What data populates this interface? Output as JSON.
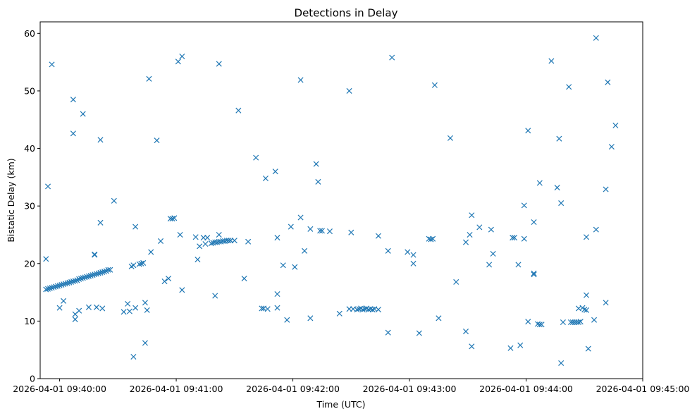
{
  "chart_data": {
    "type": "scatter",
    "title": "Detections in Delay",
    "xlabel": "Time (UTC)",
    "ylabel": "Bistatic Delay (km)",
    "marker": "x",
    "color": "#1f77b4",
    "grid": false,
    "xlim": [
      "2026-04-01 09:39:50",
      "2026-04-01 09:45:00"
    ],
    "ylim": [
      0,
      62
    ],
    "x_ticks": [
      "2026-04-01 09:40:00",
      "2026-04-01 09:41:00",
      "2026-04-01 09:42:00",
      "2026-04-01 09:43:00",
      "2026-04-01 09:44:00",
      "2026-04-01 09:45:00"
    ],
    "y_ticks": [
      0,
      10,
      20,
      30,
      40,
      50,
      60
    ],
    "points": [
      [
        "09:39:53",
        15.5
      ],
      [
        "09:39:54",
        15.6
      ],
      [
        "09:39:55",
        15.7
      ],
      [
        "09:39:56",
        15.8
      ],
      [
        "09:39:57",
        15.9
      ],
      [
        "09:39:58",
        16.0
      ],
      [
        "09:39:59",
        16.1
      ],
      [
        "09:40:00",
        16.2
      ],
      [
        "09:40:01",
        16.3
      ],
      [
        "09:40:02",
        16.4
      ],
      [
        "09:40:03",
        16.5
      ],
      [
        "09:40:04",
        16.6
      ],
      [
        "09:40:05",
        16.7
      ],
      [
        "09:40:06",
        16.8
      ],
      [
        "09:40:07",
        16.9
      ],
      [
        "09:40:08",
        17.0
      ],
      [
        "09:40:09",
        17.1
      ],
      [
        "09:40:10",
        17.3
      ],
      [
        "09:40:11",
        17.4
      ],
      [
        "09:40:12",
        17.5
      ],
      [
        "09:40:13",
        17.6
      ],
      [
        "09:40:14",
        17.7
      ],
      [
        "09:40:15",
        17.8
      ],
      [
        "09:40:16",
        17.9
      ],
      [
        "09:40:17",
        18.0
      ],
      [
        "09:40:18",
        18.1
      ],
      [
        "09:40:19",
        18.2
      ],
      [
        "09:40:20",
        18.3
      ],
      [
        "09:40:21",
        18.4
      ],
      [
        "09:40:22",
        18.5
      ],
      [
        "09:40:23",
        18.6
      ],
      [
        "09:40:24",
        18.7
      ],
      [
        "09:40:25",
        18.9
      ],
      [
        "09:40:26",
        18.9
      ],
      [
        "09:39:53",
        20.8
      ],
      [
        "09:39:54",
        33.4
      ],
      [
        "09:39:56",
        54.6
      ],
      [
        "09:40:00",
        12.3
      ],
      [
        "09:40:02",
        13.5
      ],
      [
        "09:40:07",
        48.5
      ],
      [
        "09:40:07",
        42.6
      ],
      [
        "09:40:08",
        10.3
      ],
      [
        "09:40:08",
        11.2
      ],
      [
        "09:40:10",
        11.8
      ],
      [
        "09:40:12",
        46.0
      ],
      [
        "09:40:15",
        12.4
      ],
      [
        "09:40:18",
        21.6
      ],
      [
        "09:40:18",
        21.5
      ],
      [
        "09:40:19",
        12.4
      ],
      [
        "09:40:21",
        41.5
      ],
      [
        "09:40:21",
        27.1
      ],
      [
        "09:40:22",
        12.2
      ],
      [
        "09:40:28",
        30.9
      ],
      [
        "09:40:33",
        11.6
      ],
      [
        "09:40:35",
        13.0
      ],
      [
        "09:40:36",
        11.7
      ],
      [
        "09:40:37",
        19.5
      ],
      [
        "09:40:38",
        3.8
      ],
      [
        "09:40:38",
        19.7
      ],
      [
        "09:40:39",
        26.4
      ],
      [
        "09:40:39",
        12.3
      ],
      [
        "09:40:41",
        19.9
      ],
      [
        "09:40:42",
        20.0
      ],
      [
        "09:40:43",
        20.1
      ],
      [
        "09:40:44",
        13.2
      ],
      [
        "09:40:44",
        6.2
      ],
      [
        "09:40:45",
        11.9
      ],
      [
        "09:40:46",
        52.1
      ],
      [
        "09:40:47",
        22.0
      ],
      [
        "09:40:50",
        41.4
      ],
      [
        "09:40:52",
        23.9
      ],
      [
        "09:40:54",
        16.9
      ],
      [
        "09:40:56",
        17.4
      ],
      [
        "09:40:57",
        27.8
      ],
      [
        "09:40:58",
        27.8
      ],
      [
        "09:40:59",
        27.9
      ],
      [
        "09:41:01",
        55.1
      ],
      [
        "09:41:02",
        25.0
      ],
      [
        "09:41:03",
        56.0
      ],
      [
        "09:41:03",
        15.4
      ],
      [
        "09:41:10",
        24.6
      ],
      [
        "09:41:11",
        20.7
      ],
      [
        "09:41:12",
        23.0
      ],
      [
        "09:41:14",
        24.5
      ],
      [
        "09:41:15",
        23.4
      ],
      [
        "09:41:16",
        24.5
      ],
      [
        "09:41:18",
        23.5
      ],
      [
        "09:41:19",
        23.6
      ],
      [
        "09:41:20",
        23.7
      ],
      [
        "09:41:21",
        23.7
      ],
      [
        "09:41:22",
        23.8
      ],
      [
        "09:41:23",
        23.8
      ],
      [
        "09:41:24",
        23.9
      ],
      [
        "09:41:25",
        23.9
      ],
      [
        "09:41:26",
        24.0
      ],
      [
        "09:41:27",
        24.0
      ],
      [
        "09:41:28",
        24.0
      ],
      [
        "09:41:30",
        24.0
      ],
      [
        "09:41:20",
        14.4
      ],
      [
        "09:41:22",
        54.7
      ],
      [
        "09:41:22",
        25.0
      ],
      [
        "09:41:32",
        46.6
      ],
      [
        "09:41:35",
        17.4
      ],
      [
        "09:41:37",
        23.8
      ],
      [
        "09:41:41",
        38.4
      ],
      [
        "09:41:44",
        12.2
      ],
      [
        "09:41:45",
        12.2
      ],
      [
        "09:41:46",
        34.8
      ],
      [
        "09:41:47",
        12.1
      ],
      [
        "09:41:51",
        36.0
      ],
      [
        "09:41:52",
        24.5
      ],
      [
        "09:41:52",
        14.7
      ],
      [
        "09:41:52",
        12.3
      ],
      [
        "09:41:55",
        19.7
      ],
      [
        "09:41:57",
        10.2
      ],
      [
        "09:41:59",
        26.4
      ],
      [
        "09:42:01",
        19.4
      ],
      [
        "09:42:04",
        51.9
      ],
      [
        "09:42:04",
        28.0
      ],
      [
        "09:42:06",
        22.2
      ],
      [
        "09:42:09",
        26.0
      ],
      [
        "09:42:09",
        10.5
      ],
      [
        "09:42:12",
        37.3
      ],
      [
        "09:42:13",
        34.2
      ],
      [
        "09:42:14",
        25.7
      ],
      [
        "09:42:15",
        25.7
      ],
      [
        "09:42:19",
        25.6
      ],
      [
        "09:42:24",
        11.3
      ],
      [
        "09:42:29",
        50.0
      ],
      [
        "09:42:30",
        25.4
      ],
      [
        "09:42:29",
        12.1
      ],
      [
        "09:42:31",
        12.1
      ],
      [
        "09:42:33",
        12.0
      ],
      [
        "09:42:34",
        12.1
      ],
      [
        "09:42:35",
        12.2
      ],
      [
        "09:42:36",
        12.0
      ],
      [
        "09:42:37",
        12.1
      ],
      [
        "09:42:38",
        12.2
      ],
      [
        "09:42:39",
        12.0
      ],
      [
        "09:42:40",
        12.1
      ],
      [
        "09:42:41",
        12.0
      ],
      [
        "09:42:42",
        12.1
      ],
      [
        "09:42:44",
        12.0
      ],
      [
        "09:42:44",
        24.8
      ],
      [
        "09:42:49",
        22.2
      ],
      [
        "09:42:49",
        8.0
      ],
      [
        "09:42:51",
        55.8
      ],
      [
        "09:42:59",
        22.0
      ],
      [
        "09:43:02",
        21.5
      ],
      [
        "09:43:02",
        20.0
      ],
      [
        "09:43:05",
        7.9
      ],
      [
        "09:43:10",
        24.3
      ],
      [
        "09:43:11",
        24.2
      ],
      [
        "09:43:12",
        24.3
      ],
      [
        "09:43:13",
        51.0
      ],
      [
        "09:43:15",
        10.5
      ],
      [
        "09:43:21",
        41.8
      ],
      [
        "09:43:24",
        16.8
      ],
      [
        "09:43:29",
        23.7
      ],
      [
        "09:43:29",
        8.2
      ],
      [
        "09:43:31",
        25.0
      ],
      [
        "09:43:32",
        28.4
      ],
      [
        "09:43:32",
        5.6
      ],
      [
        "09:43:36",
        26.3
      ],
      [
        "09:43:41",
        19.8
      ],
      [
        "09:43:42",
        25.9
      ],
      [
        "09:43:43",
        21.7
      ],
      [
        "09:43:52",
        5.3
      ],
      [
        "09:43:53",
        24.5
      ],
      [
        "09:43:54",
        24.5
      ],
      [
        "09:43:56",
        19.8
      ],
      [
        "09:43:57",
        5.8
      ],
      [
        "09:43:59",
        24.3
      ],
      [
        "09:43:59",
        30.1
      ],
      [
        "09:44:01",
        43.1
      ],
      [
        "09:44:01",
        9.9
      ],
      [
        "09:44:04",
        27.2
      ],
      [
        "09:44:04",
        18.3
      ],
      [
        "09:44:04",
        18.1
      ],
      [
        "09:44:06",
        9.5
      ],
      [
        "09:44:07",
        34.0
      ],
      [
        "09:44:07",
        9.4
      ],
      [
        "09:44:08",
        9.4
      ],
      [
        "09:44:13",
        55.2
      ],
      [
        "09:44:16",
        33.2
      ],
      [
        "09:44:17",
        41.7
      ],
      [
        "09:44:18",
        30.5
      ],
      [
        "09:44:18",
        2.7
      ],
      [
        "09:44:19",
        9.8
      ],
      [
        "09:44:22",
        50.7
      ],
      [
        "09:44:23",
        9.8
      ],
      [
        "09:44:24",
        9.8
      ],
      [
        "09:44:25",
        9.8
      ],
      [
        "09:44:26",
        9.8
      ],
      [
        "09:44:27",
        9.8
      ],
      [
        "09:44:27",
        12.2
      ],
      [
        "09:44:28",
        9.9
      ],
      [
        "09:44:29",
        12.3
      ],
      [
        "09:44:30",
        12.0
      ],
      [
        "09:44:31",
        11.9
      ],
      [
        "09:44:31",
        14.5
      ],
      [
        "09:44:31",
        24.6
      ],
      [
        "09:44:32",
        5.2
      ],
      [
        "09:44:35",
        10.2
      ],
      [
        "09:44:36",
        59.2
      ],
      [
        "09:44:36",
        25.9
      ],
      [
        "09:44:41",
        32.9
      ],
      [
        "09:44:41",
        13.2
      ],
      [
        "09:44:42",
        51.5
      ],
      [
        "09:44:44",
        40.3
      ],
      [
        "09:44:46",
        44.0
      ]
    ]
  }
}
